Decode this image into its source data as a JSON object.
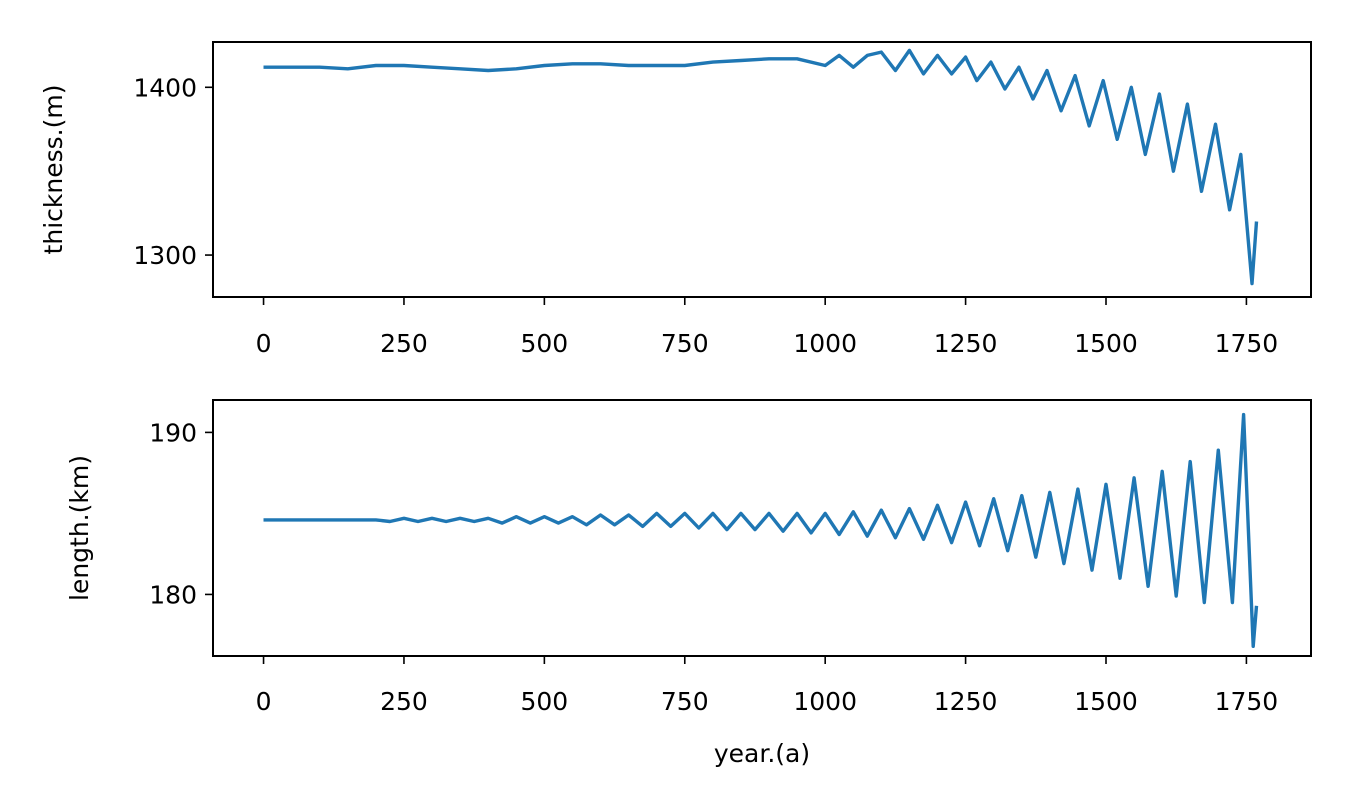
{
  "chart_data": [
    {
      "type": "line",
      "xlabel": "",
      "ylabel": "thickness.(m)",
      "xlim": [
        -90,
        1865
      ],
      "ylim": [
        1275,
        1427
      ],
      "xticks": [
        0,
        250,
        500,
        750,
        1000,
        1250,
        1500,
        1750
      ],
      "xtick_labels": [
        "0",
        "250",
        "500",
        "750",
        "1000",
        "1250",
        "1500",
        "1750"
      ],
      "yticks": [
        1300,
        1400
      ],
      "ytick_labels": [
        "1300",
        "1400"
      ],
      "grid": false,
      "color": "#1f77b4",
      "series": [
        {
          "x": [
            0,
            50,
            100,
            150,
            200,
            250,
            300,
            350,
            400,
            450,
            500,
            550,
            600,
            650,
            700,
            750,
            800,
            850,
            900,
            950,
            1000,
            1025,
            1050,
            1075,
            1100,
            1125,
            1150,
            1175,
            1200,
            1225,
            1250,
            1270,
            1295,
            1320,
            1345,
            1370,
            1395,
            1420,
            1445,
            1470,
            1495,
            1520,
            1545,
            1570,
            1595,
            1620,
            1645,
            1670,
            1695,
            1720,
            1740,
            1760,
            1768
          ],
          "values": [
            1412,
            1412,
            1412,
            1411,
            1413,
            1413,
            1412,
            1411,
            1410,
            1411,
            1413,
            1414,
            1414,
            1413,
            1413,
            1413,
            1415,
            1416,
            1417,
            1417,
            1413,
            1419,
            1412,
            1419,
            1421,
            1410,
            1422,
            1408,
            1419,
            1408,
            1418,
            1404,
            1415,
            1399,
            1412,
            1393,
            1410,
            1386,
            1407,
            1377,
            1404,
            1369,
            1400,
            1360,
            1396,
            1350,
            1390,
            1338,
            1378,
            1327,
            1360,
            1283,
            1320
          ]
        }
      ]
    },
    {
      "type": "line",
      "xlabel": "year.(a)",
      "ylabel": "length.(km)",
      "xlim": [
        -90,
        1865
      ],
      "ylim": [
        176.2,
        192.0
      ],
      "xticks": [
        0,
        250,
        500,
        750,
        1000,
        1250,
        1500,
        1750
      ],
      "xtick_labels": [
        "0",
        "250",
        "500",
        "750",
        "1000",
        "1250",
        "1500",
        "1750"
      ],
      "yticks": [
        180,
        190
      ],
      "ytick_labels": [
        "180",
        "190"
      ],
      "grid": false,
      "color": "#1f77b4",
      "series": [
        {
          "x": [
            0,
            25,
            50,
            75,
            100,
            125,
            150,
            175,
            200,
            225,
            250,
            275,
            300,
            325,
            350,
            375,
            400,
            425,
            450,
            475,
            500,
            525,
            550,
            575,
            600,
            625,
            650,
            675,
            700,
            725,
            750,
            775,
            800,
            825,
            850,
            875,
            900,
            925,
            950,
            975,
            1000,
            1025,
            1050,
            1075,
            1100,
            1125,
            1150,
            1175,
            1200,
            1225,
            1250,
            1275,
            1300,
            1325,
            1350,
            1375,
            1400,
            1425,
            1450,
            1475,
            1500,
            1525,
            1550,
            1575,
            1600,
            1625,
            1650,
            1675,
            1700,
            1725,
            1745,
            1762,
            1768
          ],
          "values": [
            184.6,
            184.6,
            184.6,
            184.6,
            184.6,
            184.6,
            184.6,
            184.6,
            184.6,
            184.5,
            184.7,
            184.5,
            184.7,
            184.5,
            184.7,
            184.5,
            184.7,
            184.4,
            184.8,
            184.4,
            184.8,
            184.4,
            184.8,
            184.3,
            184.9,
            184.3,
            184.9,
            184.2,
            185.0,
            184.2,
            185.0,
            184.1,
            185.0,
            184.0,
            185.0,
            184.0,
            185.0,
            183.9,
            185.0,
            183.8,
            185.0,
            183.7,
            185.1,
            183.6,
            185.2,
            183.5,
            185.3,
            183.4,
            185.5,
            183.2,
            185.7,
            183.0,
            185.9,
            182.7,
            186.1,
            182.3,
            186.3,
            181.9,
            186.5,
            181.5,
            186.8,
            181.0,
            187.2,
            180.5,
            187.6,
            179.9,
            188.2,
            179.5,
            188.9,
            179.5,
            191.1,
            176.8,
            179.3
          ]
        }
      ]
    }
  ]
}
